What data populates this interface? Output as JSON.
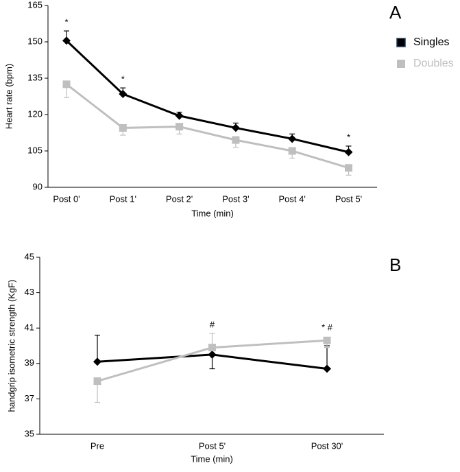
{
  "chart_data": [
    {
      "type": "line",
      "panel": "A",
      "ylabel": "Heart rate (bpm)",
      "xlabel": "Time (min)",
      "categories": [
        "Post 0'",
        "Post 1'",
        "Post 2'",
        "Post 3'",
        "Post 4'",
        "Post 5'"
      ],
      "ylim": [
        90,
        165
      ],
      "yticks": [
        90,
        105,
        120,
        135,
        150,
        165
      ],
      "legend": "right",
      "series": [
        {
          "name": "Singles",
          "color": "#000000",
          "marker": "diamond",
          "values": [
            150.5,
            128.5,
            119.5,
            114.5,
            110,
            104.5
          ],
          "errors": [
            4,
            2.5,
            1.5,
            2,
            2,
            2.5
          ],
          "error_side": [
            "up",
            "up",
            "up",
            "up",
            "up",
            "up"
          ]
        },
        {
          "name": "Doubles",
          "color": "#bfbfbf",
          "marker": "square",
          "values": [
            132.5,
            114.5,
            115,
            109.5,
            105,
            98
          ],
          "errors": [
            5.5,
            3,
            3,
            3,
            3,
            3
          ],
          "error_side": [
            "down",
            "down",
            "down",
            "down",
            "down",
            "down"
          ]
        }
      ],
      "annotations": [
        {
          "text": "*",
          "category": 0
        },
        {
          "text": "*",
          "category": 1
        },
        {
          "text": "*",
          "category": 5
        }
      ]
    },
    {
      "type": "line",
      "panel": "B",
      "ylabel": "handgrip isometric strength (KgF)",
      "xlabel": "Time (min)",
      "categories": [
        "Pre",
        "Post 5'",
        "Post 30'"
      ],
      "ylim": [
        35,
        45
      ],
      "yticks": [
        35,
        37,
        39,
        41,
        43,
        45
      ],
      "series": [
        {
          "name": "Singles",
          "color": "#000000",
          "marker": "diamond",
          "values": [
            39.1,
            39.5,
            38.7
          ],
          "errors": [
            1.5,
            0.8,
            1.3
          ],
          "error_side": [
            "up",
            "down",
            "up"
          ]
        },
        {
          "name": "Doubles",
          "color": "#bfbfbf",
          "marker": "square",
          "values": [
            38,
            39.9,
            40.3
          ],
          "errors": [
            1.2,
            0.8,
            0.4
          ],
          "error_side": [
            "down",
            "up",
            "down"
          ]
        }
      ],
      "annotations": [
        {
          "text": "#",
          "category": 1
        },
        {
          "text": "* #",
          "category": 2
        }
      ]
    }
  ]
}
